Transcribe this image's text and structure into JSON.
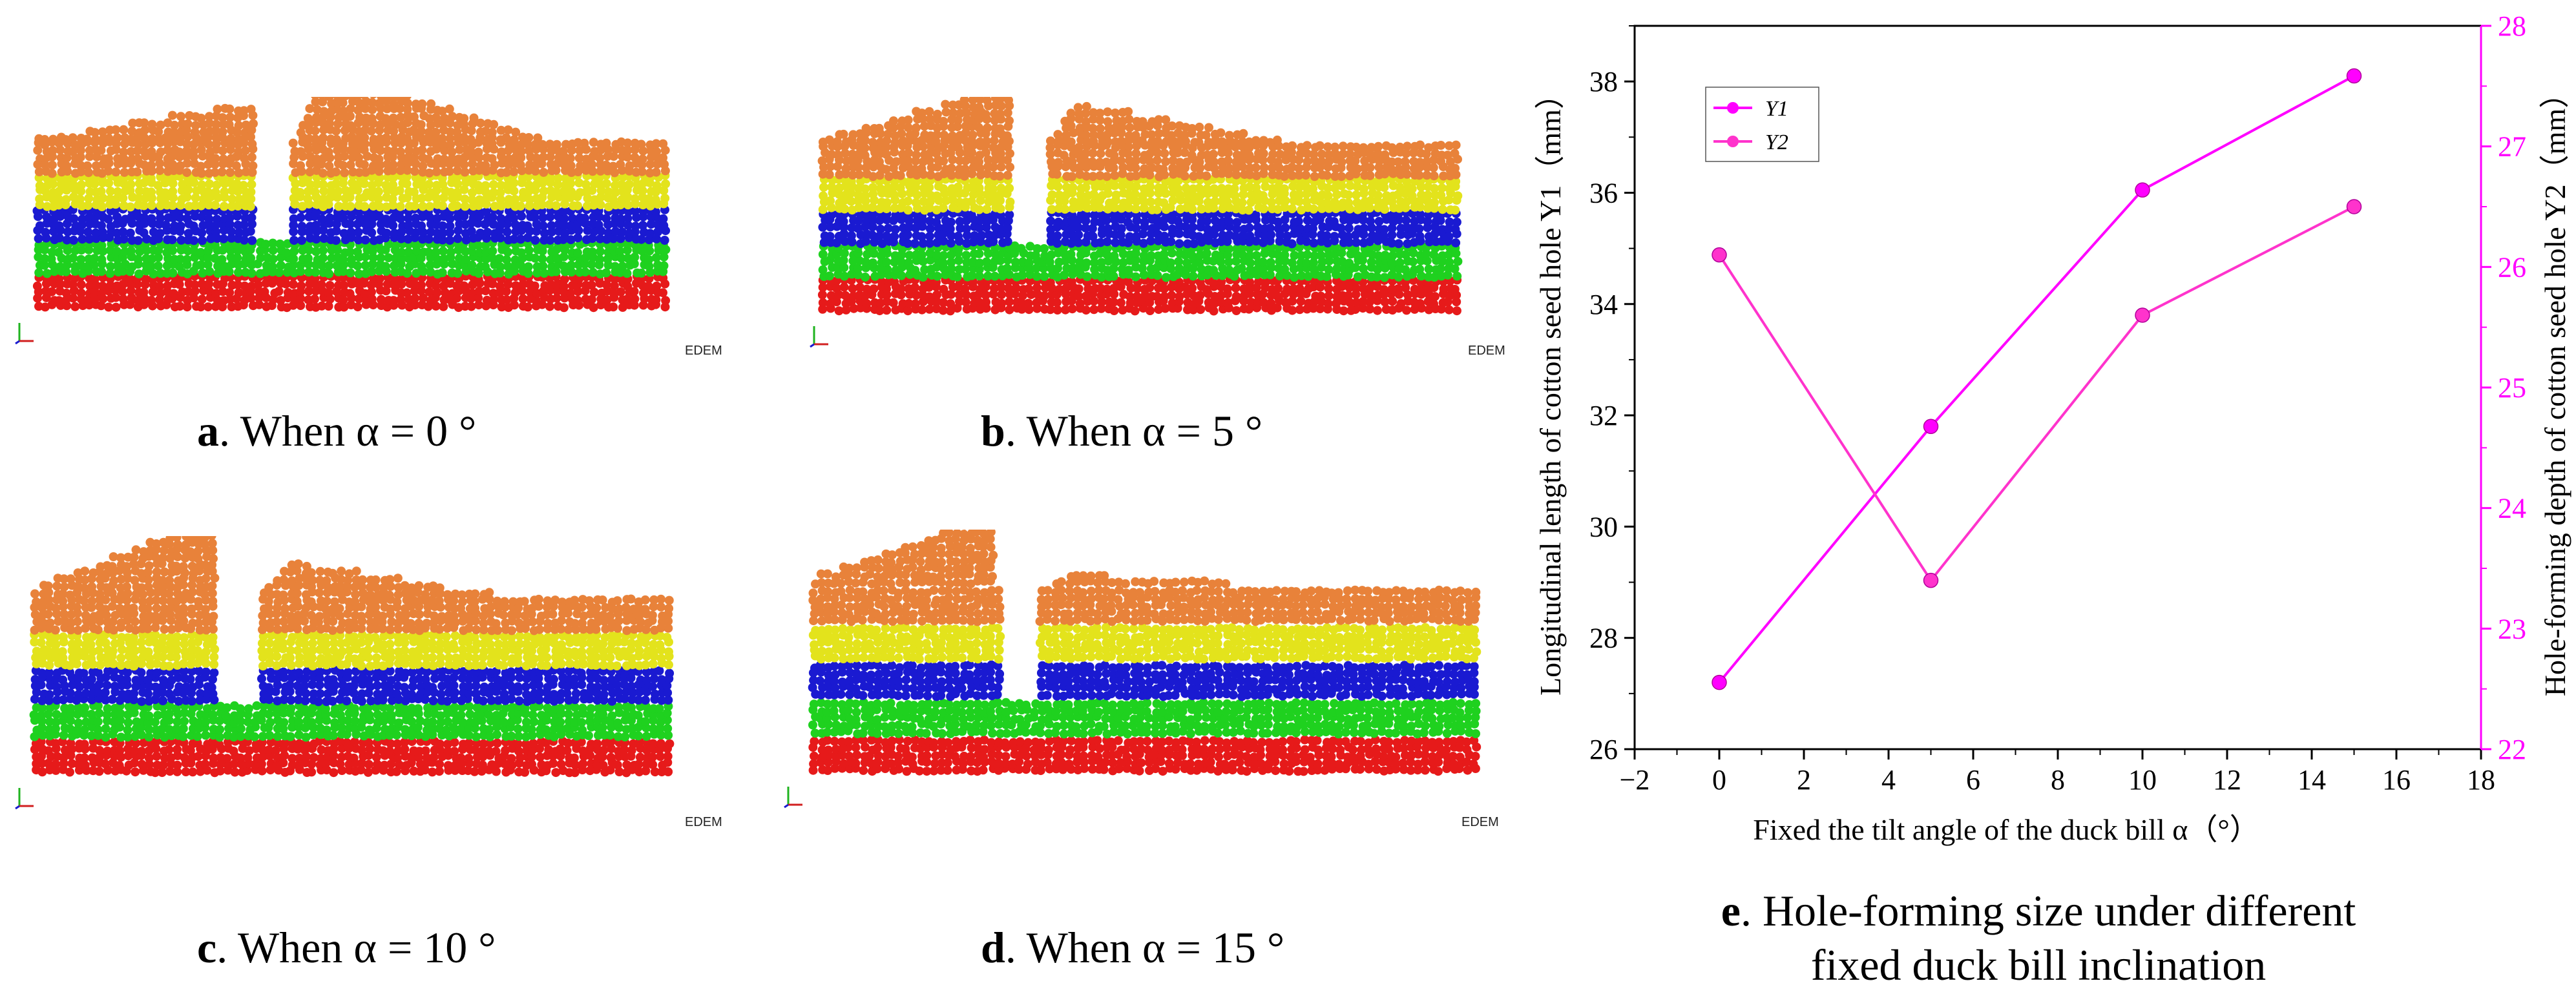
{
  "panels": [
    {
      "letter": "a",
      "caption": ". When α = 0 °",
      "alpha": 0,
      "logo": "EDEM"
    },
    {
      "letter": "b",
      "caption": ". When α = 5 °",
      "alpha": 5,
      "logo": "EDEM"
    },
    {
      "letter": "c",
      "caption": ". When α = 10 °",
      "alpha": 10,
      "logo": "EDEM"
    },
    {
      "letter": "d",
      "caption": ". When α = 15 °",
      "alpha": 15,
      "logo": "EDEM"
    }
  ],
  "layer_colors": [
    "#e8823a",
    "#e3e31c",
    "#1a1ad1",
    "#1fd11f",
    "#e61a1a"
  ],
  "chart_caption": {
    "letter": "e",
    "line1": ". Hole-forming  size under different",
    "line2": "fixed duck bill inclination"
  },
  "chart_data": {
    "type": "line",
    "xlabel": "Fixed the tilt angle of the duck bill α（°）",
    "ylabel_left": "Longitudinal length of cotton seed hole Y1（mm）",
    "ylabel_right": "Hole-forming depth of cotton seed hole Y2（mm）",
    "x": [
      0,
      5,
      10,
      15
    ],
    "xlim": [
      -2,
      18
    ],
    "xticks": [
      "−2",
      "0",
      "2",
      "4",
      "6",
      "8",
      "10",
      "12",
      "14",
      "16",
      "18"
    ],
    "ylim_left": [
      26,
      39
    ],
    "yticks_left": [
      "26",
      "28",
      "30",
      "32",
      "34",
      "36",
      "38"
    ],
    "ylim_right": [
      22,
      28
    ],
    "yticks_right": [
      "22",
      "23",
      "24",
      "25",
      "26",
      "27",
      "28"
    ],
    "series": [
      {
        "name": "Y1",
        "axis": "left",
        "values": [
          27.2,
          31.8,
          36.05,
          38.1
        ],
        "color": "#ff00ff"
      },
      {
        "name": "Y2",
        "axis": "right",
        "values": [
          26.1,
          23.4,
          25.6,
          26.5
        ],
        "color": "#ff33cc"
      }
    ],
    "legend": [
      "Y1",
      "Y2"
    ],
    "legend_position": "top-left"
  }
}
